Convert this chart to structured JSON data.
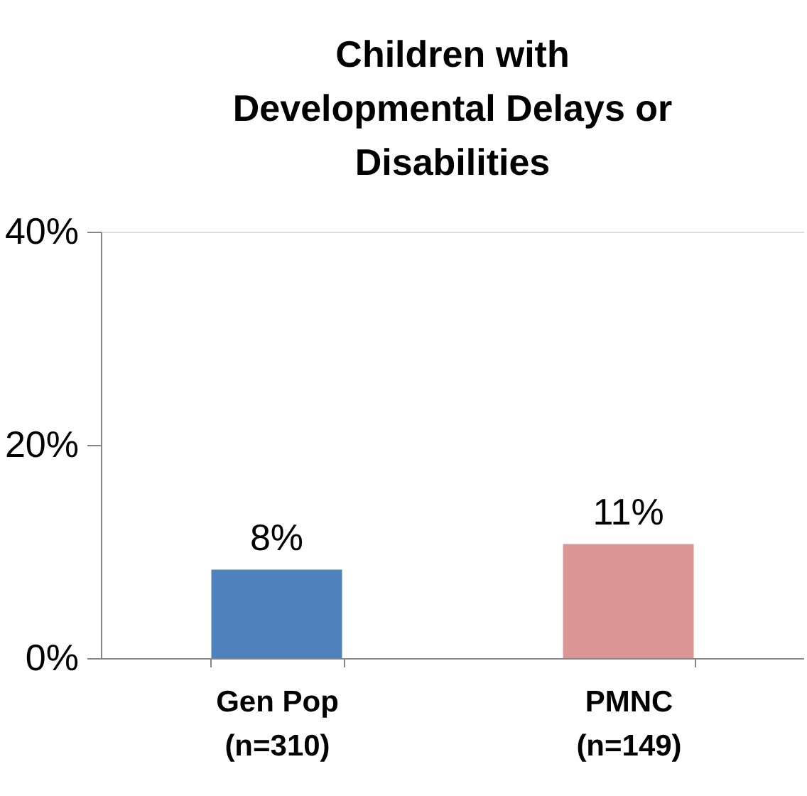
{
  "chart_data": {
    "type": "bar",
    "title": "Children with\nDevelopmental Delays or\nDisabilities",
    "categories": [
      "Gen Pop\n(n=310)",
      "PMNC\n(n=149)"
    ],
    "values": [
      8.3,
      10.7
    ],
    "colors": [
      "#4f81bd",
      "#d99694"
    ],
    "value_labels": [
      "8%",
      "11%"
    ],
    "ylim": [
      0,
      40
    ],
    "yticks": [
      {
        "value": 0,
        "label": "0%"
      },
      {
        "value": 20,
        "label": "20%"
      },
      {
        "value": 40,
        "label": "40%"
      }
    ],
    "grid": false
  }
}
